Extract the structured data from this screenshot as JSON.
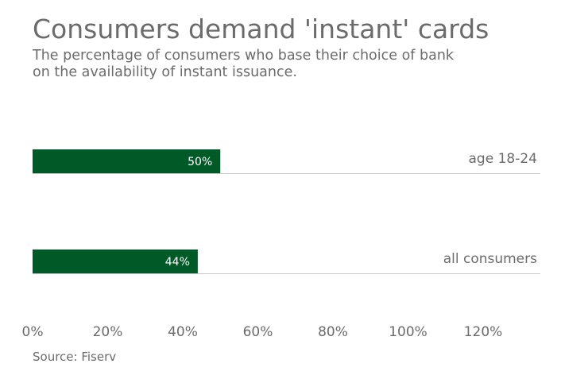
{
  "chart_data": {
    "type": "bar",
    "orientation": "horizontal",
    "title": "Consumers demand 'instant' cards",
    "subtitle_lines": [
      "The percentage of consumers who base their choice of bank",
      "on the availability of instant issuance."
    ],
    "categories": [
      "age 18-24",
      "all consumers"
    ],
    "values": [
      50,
      44
    ],
    "value_labels": [
      "50%",
      "44%"
    ],
    "xlim": [
      0,
      135
    ],
    "x_ticks": [
      0,
      20,
      40,
      60,
      80,
      100,
      120
    ],
    "x_tick_labels": [
      "0%",
      "20%",
      "40%",
      "60%",
      "80%",
      "100%",
      "120%"
    ],
    "grid": false,
    "legend": "none",
    "source": "Source: Fiserv",
    "bar_color": "#005a28",
    "baseline_color": "#c8c8c8",
    "text_color": "#6b6b6b"
  }
}
